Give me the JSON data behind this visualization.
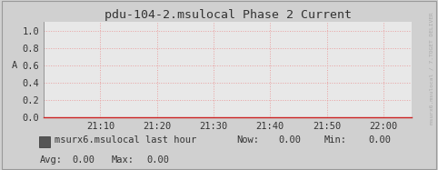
{
  "title": "pdu-104-2.msulocal Phase 2 Current",
  "ylabel": "A",
  "bg_color": "#d0d0d0",
  "plot_bg_color": "#e8e8e8",
  "grid_color": "#e8a0a0",
  "spine_color": "#888888",
  "axis_arrow_color": "#cc2222",
  "title_color": "#333333",
  "label_color": "#333333",
  "tick_color": "#333333",
  "ylim": [
    0.0,
    1.1
  ],
  "yticks": [
    0.0,
    0.2,
    0.4,
    0.6,
    0.8,
    1.0
  ],
  "xtick_labels": [
    "21:10",
    "21:20",
    "21:30",
    "21:40",
    "21:50",
    "22:00"
  ],
  "legend_label": "msurx6.msulocal last hour",
  "legend_box_color": "#555555",
  "stats_now": "0.00",
  "stats_min": "0.00",
  "stats_avg": "0.00",
  "stats_max": "0.00",
  "font_family": "monospace",
  "font_size": 7.5,
  "title_font_size": 9.5,
  "right_label": "msurx6.msulocal / 7.TOGET DELIVER",
  "right_label_color": "#aaaaaa"
}
